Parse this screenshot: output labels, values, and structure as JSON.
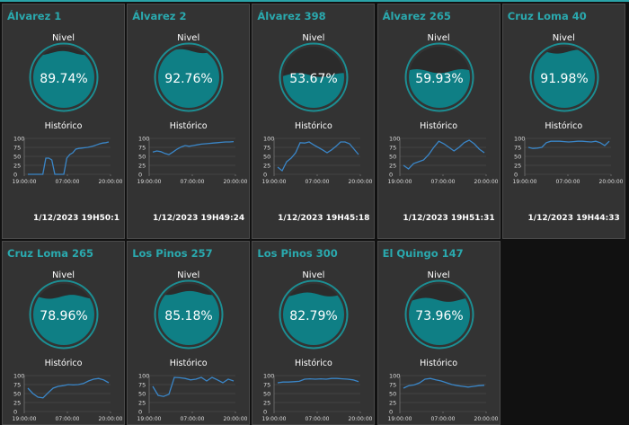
{
  "nivel_label": "Nivel",
  "historico_label": "Histórico",
  "colors": {
    "accent": "#2aa9ae",
    "gauge_fill": "#0f7f85",
    "gauge_ring": "#1c8f94",
    "line": "#3a86c8",
    "card_bg": "#333333"
  },
  "chart_axis": {
    "y_ticks": [
      "100",
      "75",
      "50",
      "25",
      "0"
    ],
    "x_ticks": [
      "19:00:00",
      "07:00:00",
      "20:00:00"
    ],
    "ylim": [
      0,
      100
    ]
  },
  "tanks": [
    {
      "name": "Álvarez 1",
      "percent": "89.74%",
      "level": 89.74,
      "timestamp": "1/12/2023 19H50:1",
      "chart_data": {
        "type": "line",
        "x_ticks": [
          "19:00:00",
          "07:00:00",
          "20:00:00"
        ],
        "ylim": [
          0,
          100
        ],
        "values": [
          0,
          0,
          0,
          0,
          0,
          0,
          45,
          45,
          40,
          0,
          0,
          0,
          0,
          45,
          55,
          60,
          70,
          72,
          73,
          74,
          75,
          77,
          79,
          82,
          85,
          87,
          88,
          90
        ]
      }
    },
    {
      "name": "Álvarez 2",
      "percent": "92.76%",
      "level": 92.76,
      "timestamp": "1/12/2023 19H49:24",
      "chart_data": {
        "type": "line",
        "x_ticks": [
          "19:00:00",
          "07:00:00",
          "20:00:00"
        ],
        "ylim": [
          0,
          100
        ],
        "values": [
          62,
          65,
          63,
          58,
          55,
          62,
          70,
          76,
          80,
          78,
          80,
          82,
          84,
          85,
          86,
          87,
          88,
          89,
          90,
          90,
          91
        ]
      }
    },
    {
      "name": "Álvarez 398",
      "percent": "53.67%",
      "level": 53.67,
      "timestamp": "1/12/2023 19H45:18",
      "chart_data": {
        "type": "line",
        "x_ticks": [
          "19:00:00",
          "07:00:00",
          "20:00:00"
        ],
        "ylim": [
          0,
          100
        ],
        "values": [
          20,
          10,
          35,
          45,
          60,
          88,
          87,
          90,
          82,
          75,
          68,
          60,
          68,
          78,
          90,
          90,
          85,
          70,
          55
        ]
      }
    },
    {
      "name": "Álvarez 265",
      "percent": "59.93%",
      "level": 59.93,
      "timestamp": "1/12/2023 19H51:31",
      "chart_data": {
        "type": "line",
        "x_ticks": [
          "19:00:00",
          "07:00:00",
          "20:00:00"
        ],
        "ylim": [
          0,
          100
        ],
        "values": [
          25,
          15,
          30,
          35,
          40,
          55,
          75,
          92,
          85,
          75,
          65,
          75,
          88,
          95,
          85,
          70,
          60
        ]
      }
    },
    {
      "name": "Cruz Loma 40",
      "percent": "91.98%",
      "level": 91.98,
      "timestamp": "1/12/2023 19H44:33",
      "chart_data": {
        "type": "line",
        "x_ticks": [
          "19:00:00",
          "07:00:00",
          "20:00:00"
        ],
        "ylim": [
          0,
          100
        ],
        "values": [
          75,
          72,
          73,
          75,
          88,
          92,
          92,
          92,
          91,
          90,
          91,
          92,
          92,
          91,
          90,
          92,
          88,
          80,
          92
        ]
      }
    },
    {
      "name": "Cruz Loma 265",
      "percent": "78.96%",
      "level": 78.96,
      "chart_data": {
        "type": "line",
        "x_ticks": [
          "19:00:00",
          "07:00:00",
          "20:00:00"
        ],
        "ylim": [
          0,
          100
        ],
        "values": [
          65,
          50,
          40,
          38,
          52,
          65,
          70,
          72,
          75,
          74,
          75,
          78,
          85,
          90,
          92,
          88,
          80
        ]
      }
    },
    {
      "name": "Los Pinos 257",
      "percent": "85.18%",
      "level": 85.18,
      "chart_data": {
        "type": "line",
        "x_ticks": [
          "19:00:00",
          "07:00:00",
          "20:00:00"
        ],
        "ylim": [
          0,
          100
        ],
        "values": [
          70,
          45,
          42,
          48,
          95,
          94,
          92,
          88,
          90,
          95,
          85,
          95,
          88,
          80,
          90,
          85
        ]
      }
    },
    {
      "name": "Los Pinos 300",
      "percent": "82.79%",
      "level": 82.79,
      "chart_data": {
        "type": "line",
        "x_ticks": [
          "19:00:00",
          "07:00:00",
          "20:00:00"
        ],
        "ylim": [
          0,
          100
        ],
        "values": [
          80,
          82,
          82,
          83,
          84,
          90,
          91,
          90,
          91,
          90,
          92,
          92,
          91,
          90,
          88,
          83
        ]
      }
    },
    {
      "name": "El Quingo 147",
      "percent": "73.96%",
      "level": 73.96,
      "chart_data": {
        "type": "line",
        "x_ticks": [
          "19:00:00",
          "07:00:00",
          "20:00:00"
        ],
        "ylim": [
          0,
          100
        ],
        "values": [
          65,
          72,
          74,
          80,
          90,
          92,
          88,
          85,
          80,
          75,
          72,
          70,
          68,
          70,
          72,
          73
        ]
      }
    }
  ]
}
